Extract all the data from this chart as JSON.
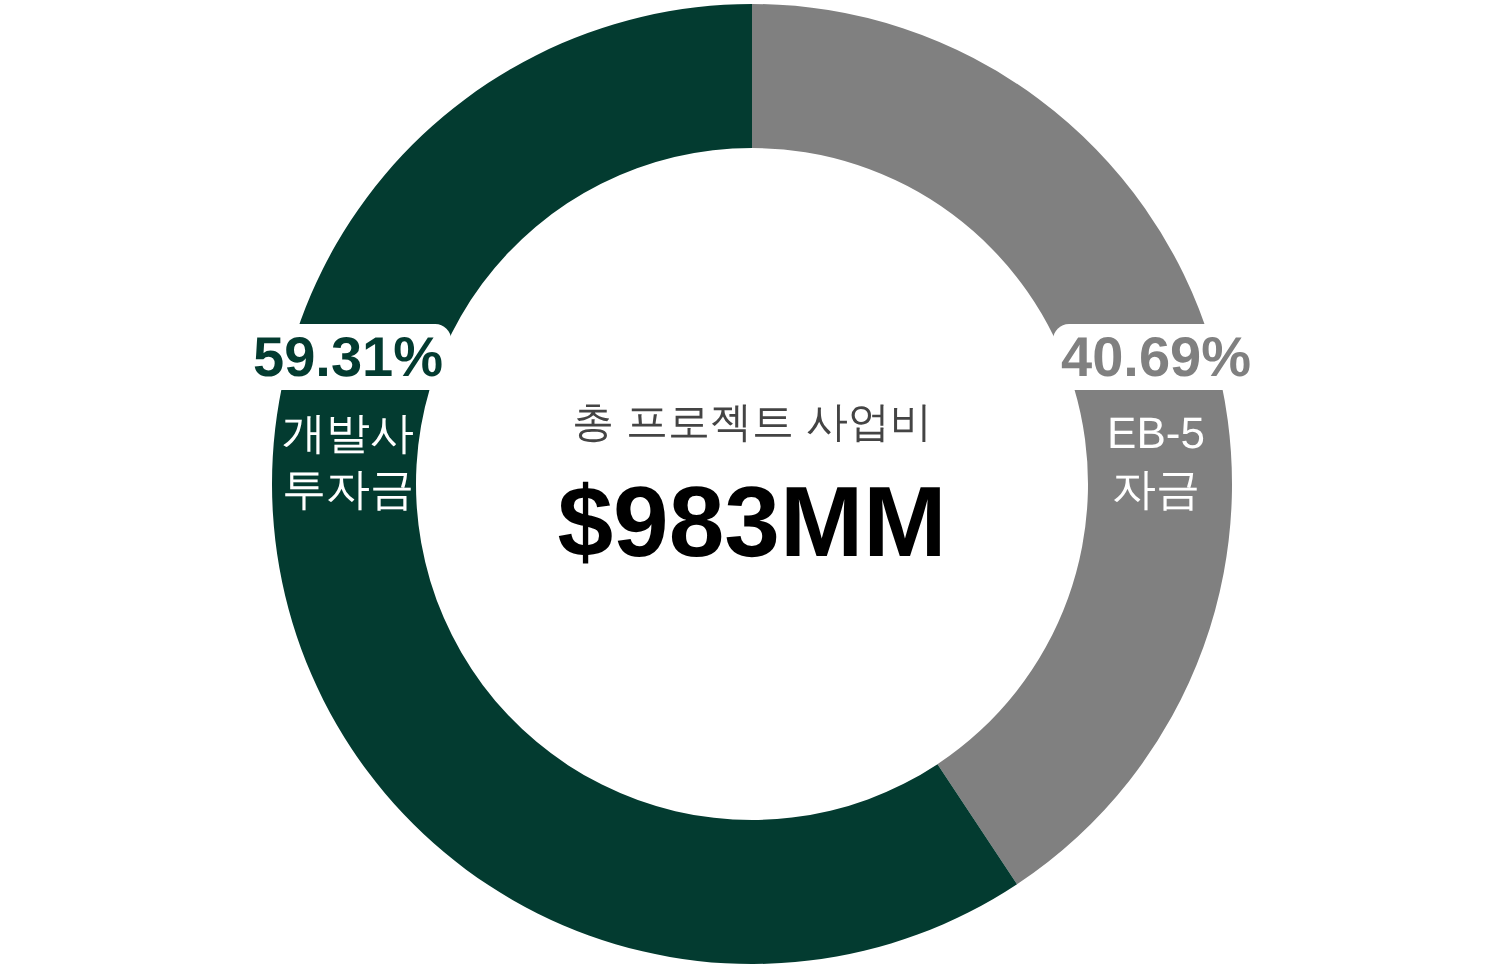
{
  "chart_data": {
    "type": "donut",
    "categories": [
      "EB-5 자금",
      "개발사 투자금"
    ],
    "values": [
      40.69,
      59.31
    ],
    "colors": [
      "#808080",
      "#033b30"
    ],
    "value_labels": [
      "40.69%",
      "59.31%"
    ],
    "annotations": [
      "총 프로젝트 사업비",
      "$983MM"
    ]
  }
}
